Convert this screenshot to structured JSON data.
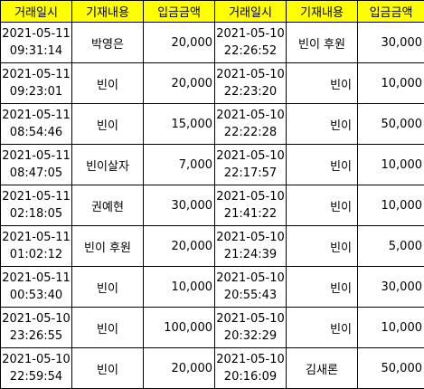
{
  "headers": [
    "거래일시",
    "기재내용",
    "입금금액",
    "거래일시",
    "기재내용",
    "입금금액"
  ],
  "rows": [
    {
      "l": {
        "date": "2021-05-11",
        "time": "09:31:14",
        "memo": "박영은",
        "amount": "20,000"
      },
      "r": {
        "date": "2021-05-10",
        "time": "22:26:52",
        "memo": "빈이 후원",
        "amount": "30,000"
      }
    },
    {
      "l": {
        "date": "2021-05-11",
        "time": "09:23:01",
        "memo": "빈이",
        "amount": "20,000"
      },
      "r": {
        "date": "2021-05-10",
        "time": "22:23:20",
        "memo": "빈이",
        "amount": "10,000"
      }
    },
    {
      "l": {
        "date": "2021-05-11",
        "time": "08:54:46",
        "memo": "빈이",
        "amount": "15,000"
      },
      "r": {
        "date": "2021-05-10",
        "time": "22:22:28",
        "memo": "빈이",
        "amount": "50,000"
      }
    },
    {
      "l": {
        "date": "2021-05-11",
        "time": "08:47:05",
        "memo": "빈이살자",
        "amount": "7,000"
      },
      "r": {
        "date": "2021-05-10",
        "time": "22:17:57",
        "memo": "빈이",
        "amount": "10,000"
      }
    },
    {
      "l": {
        "date": "2021-05-11",
        "time": "02:18:05",
        "memo": "권예현",
        "amount": "30,000"
      },
      "r": {
        "date": "2021-05-10",
        "time": "21:41:22",
        "memo": "빈이",
        "amount": "10,000"
      }
    },
    {
      "l": {
        "date": "2021-05-11",
        "time": "01:02:12",
        "memo": "빈이 후원",
        "amount": "20,000"
      },
      "r": {
        "date": "2021-05-10",
        "time": "21:24:39",
        "memo": "빈이",
        "amount": "5,000"
      }
    },
    {
      "l": {
        "date": "2021-05-11",
        "time": "00:53:40",
        "memo": "빈이",
        "amount": "10,000"
      },
      "r": {
        "date": "2021-05-10",
        "time": "20:55:43",
        "memo": "빈이",
        "amount": "30,000"
      }
    },
    {
      "l": {
        "date": "2021-05-10",
        "time": "23:26:55",
        "memo": "빈이",
        "amount": "100,000"
      },
      "r": {
        "date": "2021-05-10",
        "time": "20:32:29",
        "memo": "빈이",
        "amount": "10,000"
      }
    },
    {
      "l": {
        "date": "2021-05-10",
        "time": "22:59:54",
        "memo": "빈이",
        "amount": "20,000"
      },
      "r": {
        "date": "2021-05-10",
        "time": "20:16:09",
        "memo": "김새론",
        "amount": "50,000"
      }
    }
  ],
  "colors": {
    "header_bg": "#ffff00",
    "border": "#000000",
    "text": "#000000",
    "page_bg": "#ffffff"
  }
}
